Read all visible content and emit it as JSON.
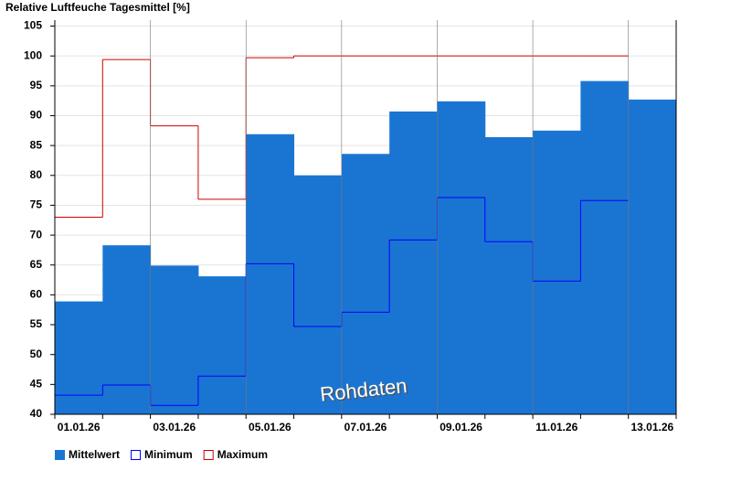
{
  "chart_data": {
    "type": "bar",
    "title": "Relative Luftfeuche Tagesmittel [%]",
    "annotation": "Rohdaten",
    "categories": [
      "01.01.26",
      null,
      "03.01.26",
      null,
      "05.01.26",
      null,
      "07.01.26",
      null,
      "09.01.26",
      null,
      "11.01.26",
      null,
      "13.01.26"
    ],
    "series": [
      {
        "name": "Mittelwert",
        "color": "#1a75d2",
        "style": "bar",
        "values": [
          58.9,
          68.3,
          64.9,
          63.1,
          86.9,
          80.0,
          83.6,
          90.7,
          92.4,
          86.4,
          87.5,
          95.8,
          92.7
        ]
      },
      {
        "name": "Minimum",
        "color": "#0000ff",
        "style": "step",
        "values": [
          43.2,
          44.9,
          41.5,
          46.4,
          65.2,
          54.7,
          57.1,
          69.2,
          76.3,
          68.9,
          62.3,
          75.8,
          null
        ]
      },
      {
        "name": "Maximum",
        "color": "#cc0000",
        "style": "step",
        "values": [
          73,
          99.4,
          88.3,
          76,
          99.7,
          100,
          100,
          100,
          100,
          100,
          100,
          100,
          null
        ]
      }
    ],
    "ylim": [
      40,
      106
    ],
    "yticks": [
      40,
      45,
      50,
      55,
      60,
      65,
      70,
      75,
      80,
      85,
      90,
      95,
      100,
      105
    ],
    "grid": true
  }
}
